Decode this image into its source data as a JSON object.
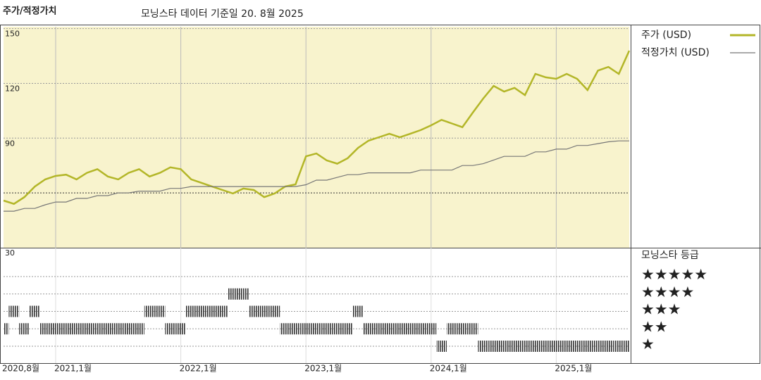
{
  "chart_data": {
    "type": "line",
    "title": "주가/적정가치",
    "subtitle": "모닝스타 데이터 기준일 20. 8월 2025",
    "x": [
      "2020-08",
      "2020-09",
      "2020-10",
      "2020-11",
      "2020-12",
      "2021-01",
      "2021-02",
      "2021-03",
      "2021-04",
      "2021-05",
      "2021-06",
      "2021-07",
      "2021-08",
      "2021-09",
      "2021-10",
      "2021-11",
      "2021-12",
      "2022-01",
      "2022-02",
      "2022-03",
      "2022-04",
      "2022-05",
      "2022-06",
      "2022-07",
      "2022-08",
      "2022-09",
      "2022-10",
      "2022-11",
      "2022-12",
      "2023-01",
      "2023-02",
      "2023-03",
      "2023-04",
      "2023-05",
      "2023-06",
      "2023-07",
      "2023-08",
      "2023-09",
      "2023-10",
      "2023-11",
      "2023-12",
      "2024-01",
      "2024-02",
      "2024-03",
      "2024-04",
      "2024-05",
      "2024-06",
      "2024-07",
      "2024-08",
      "2024-09",
      "2024-10",
      "2024-11",
      "2024-12",
      "2025-01",
      "2025-02",
      "2025-03",
      "2025-04",
      "2025-05",
      "2025-06",
      "2025-07",
      "2025-08"
    ],
    "series": [
      {
        "name": "주가 (USD)",
        "color": "#b3b628",
        "values": [
          55.8,
          54,
          57.7,
          63.5,
          67.4,
          69.3,
          70,
          67.4,
          71,
          73,
          69,
          67.4,
          71,
          73,
          69,
          71,
          74,
          73,
          67.4,
          65.5,
          63.5,
          61.6,
          59.7,
          62.4,
          61.6,
          57.7,
          59.7,
          63.5,
          64.7,
          80,
          81.6,
          77.8,
          76,
          79,
          84.7,
          88.6,
          90.5,
          92.4,
          90.5,
          92.4,
          94.4,
          97,
          100,
          98,
          96,
          104,
          111.7,
          118.6,
          115.5,
          117.5,
          113.6,
          125.2,
          123.3,
          122.5,
          125.2,
          122.5,
          116.3,
          127,
          129,
          125.2,
          137.9
        ]
      },
      {
        "name": "적정가치 (USD)",
        "color": "#777777",
        "values": [
          50,
          50,
          51.5,
          51.5,
          53.5,
          55,
          55,
          57,
          57,
          58.5,
          58.5,
          60,
          60,
          61,
          61,
          61,
          62.5,
          62.5,
          63.5,
          63.5,
          63.5,
          63.5,
          63.5,
          63.5,
          63.5,
          63.5,
          63.5,
          63.5,
          63.5,
          64.5,
          67,
          67,
          68.5,
          70,
          70,
          71,
          71,
          71,
          71,
          71,
          72.5,
          72.5,
          72.5,
          72.5,
          75,
          75,
          76,
          78,
          80,
          80,
          80,
          82.5,
          82.5,
          84,
          84,
          86,
          86,
          87,
          88,
          88.5,
          88.5
        ]
      }
    ],
    "xlim": [
      "2020-08",
      "2025-08"
    ],
    "xticks": [
      {
        "value": "2020-08",
        "label": "2020,8월"
      },
      {
        "value": "2021-01",
        "label": "2021,1월"
      },
      {
        "value": "2022-01",
        "label": "2022,1월"
      },
      {
        "value": "2023-01",
        "label": "2023,1월"
      },
      {
        "value": "2024-01",
        "label": "2024,1월"
      },
      {
        "value": "2025-01",
        "label": "2025,1월"
      }
    ],
    "ylim": [
      30,
      151
    ],
    "yticks": [
      30,
      90,
      120,
      150
    ],
    "reference_line": 60,
    "grid": true,
    "ratings": {
      "title": "모닝스타 등급",
      "levels": [
        {
          "value": 5,
          "label": "★★★★★"
        },
        {
          "value": 4,
          "label": "★★★★"
        },
        {
          "value": 3,
          "label": "★★★"
        },
        {
          "value": 2,
          "label": "★★"
        },
        {
          "value": 1,
          "label": "★"
        }
      ],
      "color": "#333333",
      "values": [
        2,
        3,
        2,
        3,
        2,
        2,
        2,
        2,
        2,
        2,
        2,
        2,
        2,
        2,
        3,
        3,
        2,
        2,
        3,
        3,
        3,
        3,
        4,
        4,
        3,
        3,
        3,
        2,
        2,
        2,
        2,
        2,
        2,
        2,
        3,
        2,
        2,
        2,
        2,
        2,
        2,
        2,
        1,
        2,
        2,
        2,
        1,
        1,
        1,
        1,
        1,
        1,
        1,
        1,
        1,
        1,
        1,
        1,
        1,
        1,
        1
      ]
    }
  }
}
